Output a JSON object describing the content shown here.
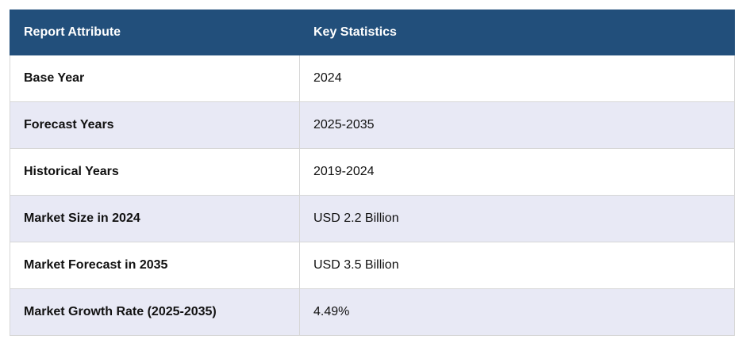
{
  "table": {
    "header": [
      "Report Attribute",
      "Key Statistics"
    ],
    "rows": [
      [
        "Base Year",
        "2024"
      ],
      [
        "Forecast Years",
        "2025-2035"
      ],
      [
        "Historical Years",
        "2019-2024"
      ],
      [
        "Market Size in 2024",
        "USD 2.2 Billion"
      ],
      [
        "Market Forecast in 2035",
        "USD 3.5 Billion"
      ],
      [
        "Market Growth Rate (2025-2035)",
        "4.49%"
      ]
    ]
  }
}
